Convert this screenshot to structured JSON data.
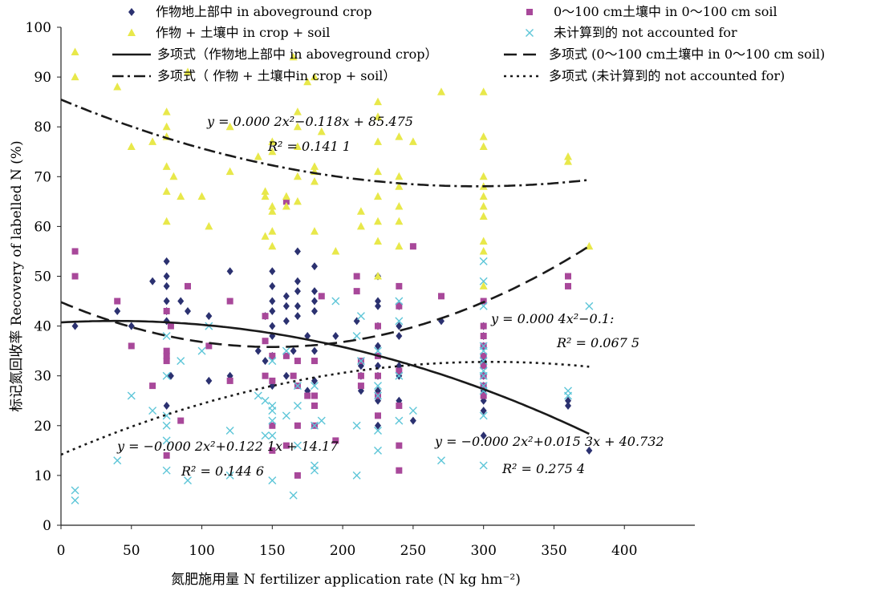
{
  "chart_data": {
    "type": "scatter",
    "xlabel": "氮肥施用量  N fertilizer application rate (N kg hm⁻²)",
    "ylabel": "标记氮回收率  Recovery of labelled N (%)",
    "xlim": [
      0,
      450
    ],
    "ylim": [
      0,
      100
    ],
    "xticks": [
      0,
      50,
      100,
      150,
      200,
      250,
      300,
      350,
      400
    ],
    "yticks": [
      0,
      10,
      20,
      30,
      40,
      50,
      60,
      70,
      80,
      90,
      100
    ],
    "grid": false,
    "legend_position": "top",
    "legend": [
      {
        "label": "作物地上部中 in aboveground crop",
        "marker": "diamond",
        "color": "#2b3170"
      },
      {
        "label": "0～100 cm土壤中 in 0～100 cm soil",
        "marker": "square",
        "color": "#a8489a"
      },
      {
        "label": "作物 + 土壤中 in crop + soil",
        "marker": "triangle",
        "color": "#e8e84a"
      },
      {
        "label": "未计算到的 not accounted for",
        "marker": "x",
        "color": "#5ec6d8"
      },
      {
        "label": "多项式（作物地上部中 in aboveground crop）",
        "line": "solid"
      },
      {
        "label": "多项式 (0～100 cm土壤中 in 0～100 cm soil)",
        "line": "dashed"
      },
      {
        "label": "多项式（ 作物 + 土壤中in crop + soil）",
        "line": "dashdot"
      },
      {
        "label": "多项式 (未计算到的 not accounted for)",
        "line": "dotted"
      }
    ],
    "annotations": [
      {
        "eq": "y = 0.000 2x²−0.118x + 85.475",
        "r2": "R² = 0.141 1"
      },
      {
        "eq": "y = 0.000 4x²−0.1:",
        "r2": "R² = 0.067 5"
      },
      {
        "eq": "y = −0.000 2x²+0.122 1x + 14.17",
        "r2": "R² = 0.144 6"
      },
      {
        "eq": "y = −0.000 2x²+0.015 3x + 40.732",
        "r2": "R² = 0.275 4"
      }
    ],
    "series": [
      {
        "name": "作物地上部中 in aboveground crop",
        "marker": "diamond",
        "color": "#2b3170",
        "points": [
          [
            10,
            40
          ],
          [
            40,
            43
          ],
          [
            50,
            40
          ],
          [
            65,
            49
          ],
          [
            75,
            53
          ],
          [
            75,
            50
          ],
          [
            75,
            48
          ],
          [
            75,
            45
          ],
          [
            75,
            43
          ],
          [
            75,
            41
          ],
          [
            75,
            24
          ],
          [
            78,
            30
          ],
          [
            85,
            45
          ],
          [
            90,
            43
          ],
          [
            105,
            42
          ],
          [
            105,
            29
          ],
          [
            120,
            51
          ],
          [
            120,
            30
          ],
          [
            140,
            35
          ],
          [
            145,
            42
          ],
          [
            145,
            33
          ],
          [
            150,
            51
          ],
          [
            150,
            48
          ],
          [
            150,
            45
          ],
          [
            150,
            43
          ],
          [
            150,
            40
          ],
          [
            150,
            38
          ],
          [
            150,
            34
          ],
          [
            150,
            28
          ],
          [
            160,
            46
          ],
          [
            160,
            44
          ],
          [
            160,
            41
          ],
          [
            160,
            30
          ],
          [
            165,
            35
          ],
          [
            168,
            55
          ],
          [
            168,
            49
          ],
          [
            168,
            47
          ],
          [
            168,
            44
          ],
          [
            168,
            42
          ],
          [
            175,
            38
          ],
          [
            175,
            27
          ],
          [
            180,
            52
          ],
          [
            180,
            47
          ],
          [
            180,
            45
          ],
          [
            180,
            43
          ],
          [
            180,
            35
          ],
          [
            180,
            29
          ],
          [
            195,
            38
          ],
          [
            210,
            41
          ],
          [
            213,
            32
          ],
          [
            213,
            30
          ],
          [
            213,
            27
          ],
          [
            225,
            50
          ],
          [
            225,
            45
          ],
          [
            225,
            44
          ],
          [
            225,
            40
          ],
          [
            225,
            36
          ],
          [
            225,
            32
          ],
          [
            225,
            30
          ],
          [
            225,
            27
          ],
          [
            225,
            25
          ],
          [
            225,
            20
          ],
          [
            240,
            44
          ],
          [
            240,
            40
          ],
          [
            240,
            38
          ],
          [
            240,
            32
          ],
          [
            240,
            30
          ],
          [
            240,
            25
          ],
          [
            250,
            21
          ],
          [
            270,
            41
          ],
          [
            300,
            40
          ],
          [
            300,
            38
          ],
          [
            300,
            36
          ],
          [
            300,
            33
          ],
          [
            300,
            30
          ],
          [
            300,
            28
          ],
          [
            300,
            27
          ],
          [
            300,
            25
          ],
          [
            300,
            23
          ],
          [
            300,
            18
          ],
          [
            360,
            25
          ],
          [
            360,
            24
          ],
          [
            375,
            15
          ]
        ]
      },
      {
        "name": "0～100 cm土壤中 in 0～100 cm soil",
        "marker": "square",
        "color": "#a8489a",
        "points": [
          [
            10,
            55
          ],
          [
            10,
            50
          ],
          [
            40,
            45
          ],
          [
            50,
            36
          ],
          [
            65,
            28
          ],
          [
            75,
            43
          ],
          [
            75,
            35
          ],
          [
            75,
            34
          ],
          [
            75,
            33
          ],
          [
            75,
            14
          ],
          [
            78,
            40
          ],
          [
            85,
            21
          ],
          [
            90,
            48
          ],
          [
            105,
            36
          ],
          [
            120,
            45
          ],
          [
            120,
            29
          ],
          [
            145,
            42
          ],
          [
            145,
            37
          ],
          [
            145,
            30
          ],
          [
            150,
            34
          ],
          [
            150,
            29
          ],
          [
            150,
            20
          ],
          [
            150,
            15
          ],
          [
            160,
            65
          ],
          [
            160,
            34
          ],
          [
            160,
            16
          ],
          [
            165,
            30
          ],
          [
            168,
            33
          ],
          [
            168,
            28
          ],
          [
            168,
            20
          ],
          [
            168,
            10
          ],
          [
            175,
            26
          ],
          [
            180,
            33
          ],
          [
            180,
            26
          ],
          [
            180,
            24
          ],
          [
            180,
            20
          ],
          [
            185,
            46
          ],
          [
            195,
            17
          ],
          [
            210,
            50
          ],
          [
            210,
            47
          ],
          [
            213,
            33
          ],
          [
            213,
            30
          ],
          [
            213,
            28
          ],
          [
            225,
            40
          ],
          [
            225,
            34
          ],
          [
            225,
            30
          ],
          [
            225,
            26
          ],
          [
            225,
            22
          ],
          [
            240,
            48
          ],
          [
            240,
            44
          ],
          [
            240,
            31
          ],
          [
            240,
            24
          ],
          [
            240,
            16
          ],
          [
            240,
            11
          ],
          [
            250,
            56
          ],
          [
            270,
            46
          ],
          [
            300,
            45
          ],
          [
            300,
            40
          ],
          [
            300,
            38
          ],
          [
            300,
            36
          ],
          [
            300,
            34
          ],
          [
            300,
            32
          ],
          [
            300,
            30
          ],
          [
            300,
            28
          ],
          [
            300,
            26
          ],
          [
            360,
            50
          ],
          [
            360,
            48
          ]
        ]
      },
      {
        "name": "作物 + 土壤中 in crop + soil",
        "marker": "triangle",
        "color": "#e8e84a",
        "points": [
          [
            10,
            95
          ],
          [
            10,
            90
          ],
          [
            40,
            88
          ],
          [
            50,
            76
          ],
          [
            65,
            77
          ],
          [
            75,
            83
          ],
          [
            75,
            80
          ],
          [
            75,
            78
          ],
          [
            75,
            72
          ],
          [
            75,
            67
          ],
          [
            75,
            61
          ],
          [
            80,
            70
          ],
          [
            85,
            66
          ],
          [
            90,
            91
          ],
          [
            100,
            66
          ],
          [
            105,
            60
          ],
          [
            120,
            80
          ],
          [
            120,
            71
          ],
          [
            140,
            74
          ],
          [
            145,
            67
          ],
          [
            145,
            66
          ],
          [
            145,
            58
          ],
          [
            150,
            77
          ],
          [
            150,
            75
          ],
          [
            150,
            64
          ],
          [
            150,
            63
          ],
          [
            150,
            59
          ],
          [
            150,
            56
          ],
          [
            160,
            66
          ],
          [
            160,
            64
          ],
          [
            165,
            94
          ],
          [
            168,
            83
          ],
          [
            168,
            80
          ],
          [
            168,
            76
          ],
          [
            168,
            70
          ],
          [
            168,
            65
          ],
          [
            175,
            89
          ],
          [
            180,
            90
          ],
          [
            180,
            72
          ],
          [
            180,
            71
          ],
          [
            180,
            69
          ],
          [
            180,
            59
          ],
          [
            185,
            79
          ],
          [
            195,
            55
          ],
          [
            213,
            63
          ],
          [
            213,
            60
          ],
          [
            225,
            85
          ],
          [
            225,
            82
          ],
          [
            225,
            77
          ],
          [
            225,
            71
          ],
          [
            225,
            66
          ],
          [
            225,
            61
          ],
          [
            225,
            57
          ],
          [
            225,
            50
          ],
          [
            240,
            78
          ],
          [
            240,
            70
          ],
          [
            240,
            68
          ],
          [
            240,
            64
          ],
          [
            240,
            61
          ],
          [
            240,
            56
          ],
          [
            250,
            77
          ],
          [
            270,
            87
          ],
          [
            300,
            87
          ],
          [
            300,
            78
          ],
          [
            300,
            76
          ],
          [
            300,
            70
          ],
          [
            300,
            68
          ],
          [
            300,
            66
          ],
          [
            300,
            64
          ],
          [
            300,
            62
          ],
          [
            300,
            57
          ],
          [
            300,
            55
          ],
          [
            300,
            48
          ],
          [
            360,
            74
          ],
          [
            360,
            73
          ],
          [
            375,
            56
          ]
        ]
      },
      {
        "name": "未计算到的 not accounted for",
        "marker": "x",
        "color": "#5ec6d8",
        "points": [
          [
            10,
            7
          ],
          [
            10,
            5
          ],
          [
            40,
            13
          ],
          [
            50,
            26
          ],
          [
            65,
            23
          ],
          [
            75,
            38
          ],
          [
            75,
            30
          ],
          [
            75,
            22
          ],
          [
            75,
            20
          ],
          [
            75,
            17
          ],
          [
            75,
            11
          ],
          [
            85,
            33
          ],
          [
            90,
            9
          ],
          [
            100,
            35
          ],
          [
            105,
            40
          ],
          [
            120,
            19
          ],
          [
            120,
            10
          ],
          [
            140,
            26
          ],
          [
            145,
            25
          ],
          [
            145,
            18
          ],
          [
            150,
            33
          ],
          [
            150,
            24
          ],
          [
            150,
            23
          ],
          [
            150,
            21
          ],
          [
            150,
            18
          ],
          [
            150,
            9
          ],
          [
            160,
            35
          ],
          [
            160,
            22
          ],
          [
            165,
            6
          ],
          [
            168,
            28
          ],
          [
            168,
            24
          ],
          [
            168,
            16
          ],
          [
            180,
            28
          ],
          [
            180,
            20
          ],
          [
            180,
            12
          ],
          [
            180,
            11
          ],
          [
            185,
            21
          ],
          [
            195,
            45
          ],
          [
            210,
            38
          ],
          [
            210,
            20
          ],
          [
            210,
            10
          ],
          [
            213,
            42
          ],
          [
            213,
            33
          ],
          [
            225,
            35
          ],
          [
            225,
            28
          ],
          [
            225,
            26
          ],
          [
            225,
            19
          ],
          [
            225,
            15
          ],
          [
            240,
            45
          ],
          [
            240,
            41
          ],
          [
            240,
            30
          ],
          [
            240,
            21
          ],
          [
            250,
            23
          ],
          [
            270,
            13
          ],
          [
            300,
            53
          ],
          [
            300,
            49
          ],
          [
            300,
            44
          ],
          [
            300,
            36
          ],
          [
            300,
            35
          ],
          [
            300,
            33
          ],
          [
            300,
            31
          ],
          [
            300,
            30
          ],
          [
            300,
            28
          ],
          [
            300,
            27
          ],
          [
            300,
            22
          ],
          [
            300,
            12
          ],
          [
            360,
            27
          ],
          [
            360,
            26
          ],
          [
            375,
            44
          ]
        ]
      }
    ],
    "fits": [
      {
        "style": "solid",
        "a": -0.0002,
        "b": 0.0153,
        "c": 40.732,
        "xmin": 0,
        "xmax": 375
      },
      {
        "style": "dashed",
        "a": 0.0004,
        "b": -0.12,
        "c": 44.8,
        "xmin": 0,
        "xmax": 375
      },
      {
        "style": "dashdot",
        "a": 0.0002,
        "b": -0.118,
        "c": 85.475,
        "xmin": 0,
        "xmax": 375
      },
      {
        "style": "dotted",
        "a": -0.0002,
        "b": 0.1221,
        "c": 14.17,
        "xmin": 0,
        "xmax": 375
      }
    ]
  }
}
